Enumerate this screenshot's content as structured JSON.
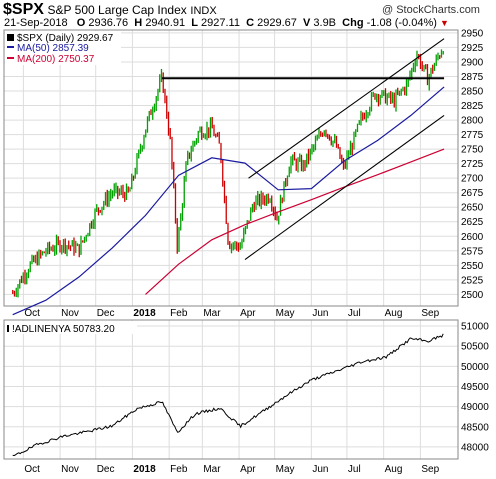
{
  "header": {
    "symbol": "$SPX",
    "name": "S&P 500 Large Cap Index",
    "exchange": "INDX",
    "watermark": "@ StockCharts.com",
    "date": "21-Sep-2018",
    "open_label": "O",
    "open": "2936.76",
    "high_label": "H",
    "high": "2940.91",
    "low_label": "L",
    "low": "2927.11",
    "close_label": "C",
    "close": "2929.67",
    "volume_label": "V",
    "volume": "3.9B",
    "chg_label": "Chg",
    "chg": "-1.08 (-0.04%)",
    "chg_arrow": "▼"
  },
  "colors": {
    "price_up": "#00a000",
    "price_down": "#cc0000",
    "ma50": "#1a1aa0",
    "ma200": "#cc0033",
    "adline": "#000000",
    "grid": "#dddddd"
  },
  "chart_data": [
    {
      "type": "line",
      "title": "$SPX (Daily) 2929.67",
      "legend_position": "top-left",
      "grid": true,
      "x_ticks": [
        "Oct",
        "Nov",
        "Dec",
        "2018",
        "Feb",
        "Mar",
        "Apr",
        "May",
        "Jun",
        "Jul",
        "Aug",
        "Sep"
      ],
      "y_ticks": [
        2500,
        2525,
        2550,
        2575,
        2600,
        2625,
        2650,
        2675,
        2700,
        2725,
        2750,
        2775,
        2800,
        2825,
        2850,
        2875,
        2900,
        2925,
        2950
      ],
      "ylim": [
        2480,
        2955
      ],
      "series": [
        {
          "name": "$SPX (Daily) 2929.67",
          "style": "daily-bars",
          "x": [
            "2017-09-22",
            "2017-10-06",
            "2017-10-20",
            "2017-11-03",
            "2017-11-17",
            "2017-12-01",
            "2017-12-15",
            "2017-12-29",
            "2018-01-12",
            "2018-01-26",
            "2018-02-02",
            "2018-02-08",
            "2018-02-16",
            "2018-02-26",
            "2018-03-09",
            "2018-03-16",
            "2018-03-23",
            "2018-04-02",
            "2018-04-13",
            "2018-04-27",
            "2018-05-03",
            "2018-05-14",
            "2018-05-25",
            "2018-06-12",
            "2018-06-22",
            "2018-06-28",
            "2018-07-13",
            "2018-07-25",
            "2018-08-10",
            "2018-08-21",
            "2018-08-29",
            "2018-09-07",
            "2018-09-21"
          ],
          "values": [
            2502,
            2549,
            2575,
            2588,
            2578,
            2642,
            2676,
            2673,
            2786,
            2873,
            2762,
            2581,
            2732,
            2780,
            2786,
            2752,
            2588,
            2582,
            2656,
            2670,
            2630,
            2730,
            2721,
            2787,
            2755,
            2716,
            2801,
            2846,
            2833,
            2863,
            2914,
            2871,
            2930
          ]
        },
        {
          "name": "MA(50) 2857.39",
          "x": [
            "2017-09-22",
            "2017-10-20",
            "2017-11-17",
            "2017-12-15",
            "2018-01-12",
            "2018-02-09",
            "2018-03-09",
            "2018-04-06",
            "2018-05-04",
            "2018-06-01",
            "2018-06-29",
            "2018-07-27",
            "2018-08-24",
            "2018-09-21"
          ],
          "values": [
            2465,
            2490,
            2530,
            2580,
            2636,
            2705,
            2735,
            2726,
            2680,
            2682,
            2730,
            2765,
            2808,
            2857
          ]
        },
        {
          "name": "MA(200) 2750.37",
          "x": [
            "2018-01-12",
            "2018-02-09",
            "2018-03-09",
            "2018-04-06",
            "2018-05-04",
            "2018-06-01",
            "2018-06-29",
            "2018-07-27",
            "2018-08-24",
            "2018-09-21"
          ],
          "values": [
            2500,
            2552,
            2594,
            2620,
            2642,
            2663,
            2685,
            2706,
            2728,
            2750
          ]
        }
      ],
      "annotations": [
        {
          "kind": "horizontal-line",
          "y": 2872,
          "from": "2018-01-26",
          "to": "2018-09-21"
        },
        {
          "kind": "trendline",
          "from_x": "2018-04-09",
          "from_y": 2700,
          "to_x": "2018-09-21",
          "to_y": 2940
        },
        {
          "kind": "trendline",
          "from_x": "2018-04-06",
          "from_y": 2560,
          "to_x": "2018-09-21",
          "to_y": 2808
        }
      ]
    },
    {
      "type": "line",
      "title": "!ADLINENYA 50783.20",
      "legend_position": "top-left",
      "grid": true,
      "x_ticks": [
        "Oct",
        "Nov",
        "Dec",
        "2018",
        "Feb",
        "Mar",
        "Apr",
        "May",
        "Jun",
        "Jul",
        "Aug",
        "Sep"
      ],
      "y_ticks": [
        48000,
        48500,
        49000,
        49500,
        50000,
        50500,
        51000
      ],
      "ylim": [
        47700,
        51150
      ],
      "series": [
        {
          "name": "!ADLINENYA 50783.20",
          "x": [
            "2017-09-22",
            "2017-10-13",
            "2017-11-03",
            "2017-11-24",
            "2017-12-15",
            "2018-01-05",
            "2018-01-26",
            "2018-02-08",
            "2018-02-23",
            "2018-03-16",
            "2018-04-02",
            "2018-04-20",
            "2018-05-11",
            "2018-06-01",
            "2018-06-22",
            "2018-07-13",
            "2018-08-03",
            "2018-08-24",
            "2018-09-07",
            "2018-09-21"
          ],
          "values": [
            47760,
            48060,
            48260,
            48380,
            48520,
            48950,
            49120,
            48360,
            48820,
            48960,
            48510,
            48860,
            49280,
            49660,
            49880,
            50110,
            50230,
            50690,
            50620,
            50783
          ]
        }
      ]
    }
  ]
}
